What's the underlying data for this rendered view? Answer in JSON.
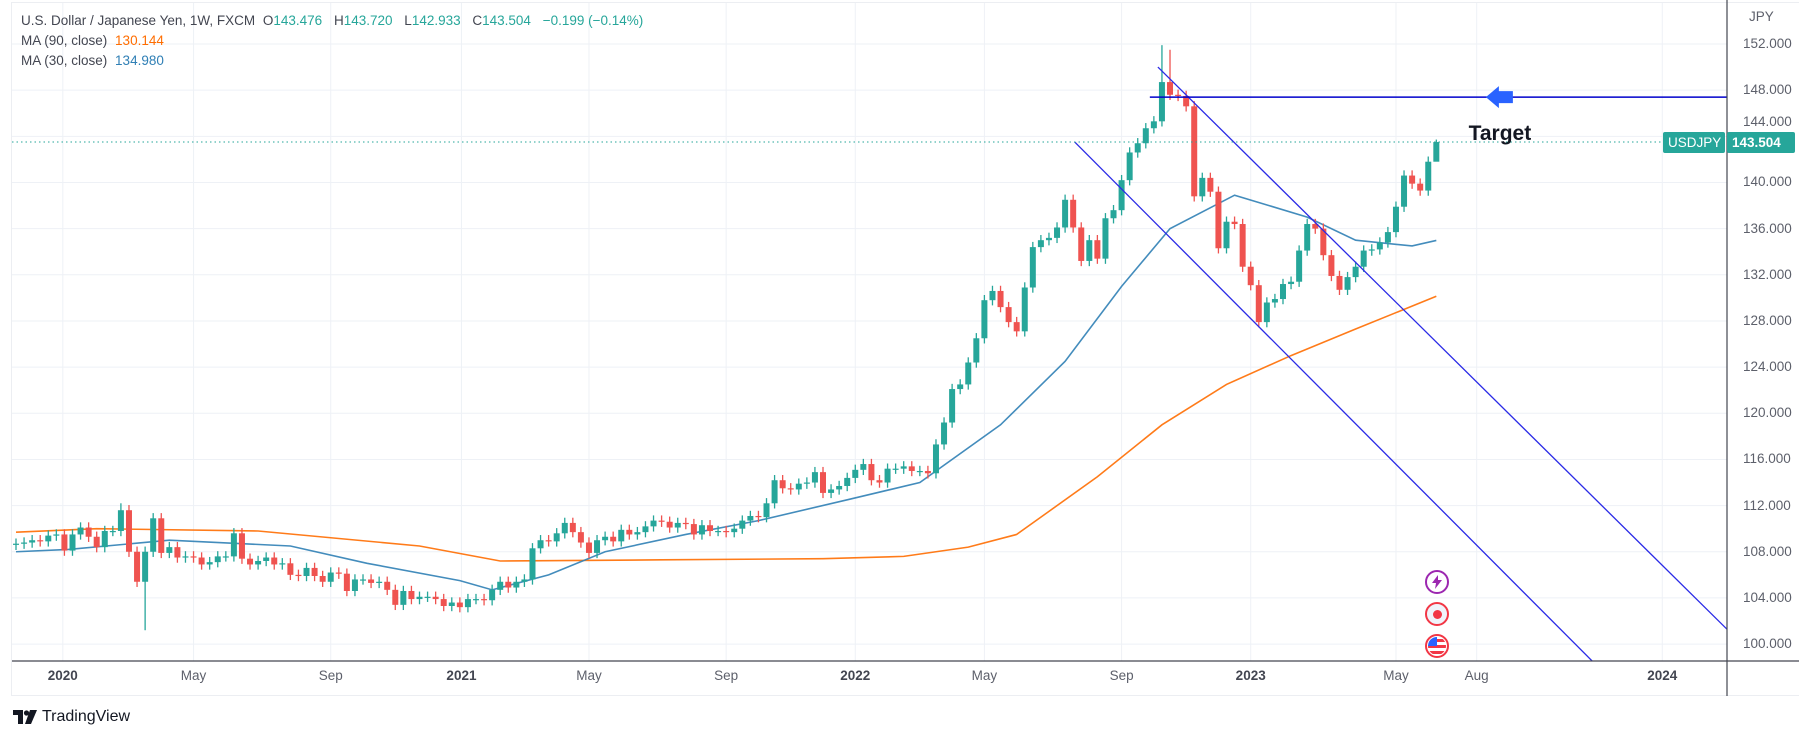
{
  "legend": {
    "title": "U.S. Dollar / Japanese Yen, 1W, FXCM",
    "o_label": "O",
    "o": "143.476",
    "h_label": "H",
    "h": "143.720",
    "l_label": "L",
    "l": "142.933",
    "c_label": "C",
    "c": "143.504",
    "change": "−0.199 (−0.14%)",
    "ma90_label": "MA (90, close)",
    "ma90_value": "130.144",
    "ma30_label": "MA (30, close)",
    "ma30_value": "134.980"
  },
  "price_tag": {
    "symbol": "USDJPY",
    "price": "143.504"
  },
  "annotation": {
    "text": "Target"
  },
  "branding": {
    "name": "TradingView"
  },
  "colors": {
    "up": "#26a69a",
    "down": "#ef5350",
    "ma90": "#ff6d00",
    "ma30": "#2f7fb5",
    "drawing": "#2a2ae6",
    "arrow": "#2962ff",
    "grid": "#eef1f6"
  },
  "events": [
    {
      "icon": "lightning-icon",
      "color": "#9c27b0"
    },
    {
      "icon": "japan-flag-icon",
      "color": "#f23645"
    },
    {
      "icon": "us-flag-icon",
      "color": "#f23645"
    }
  ],
  "chart_data": {
    "type": "candlestick",
    "title": "U.S. Dollar / Japanese Yen, 1W, FXCM",
    "ylabel": "JPY",
    "ylim": [
      98,
      152.7
    ],
    "price_ticks": [
      "152.000",
      "148.000",
      "144.000",
      "140.000",
      "136.000",
      "132.000",
      "128.000",
      "124.000",
      "120.000",
      "116.000",
      "112.000",
      "108.000",
      "104.000",
      "100.000"
    ],
    "price_tick_values": [
      152,
      148,
      144,
      140,
      136,
      132,
      128,
      124,
      120,
      116,
      112,
      108,
      104,
      100
    ],
    "time_labels": [
      {
        "label": "2020",
        "bar": 5.8,
        "year": true
      },
      {
        "label": "May",
        "bar": 22,
        "year": false
      },
      {
        "label": "Sep",
        "bar": 39,
        "year": false
      },
      {
        "label": "2021",
        "bar": 55.2,
        "year": true
      },
      {
        "label": "May",
        "bar": 71,
        "year": false
      },
      {
        "label": "Sep",
        "bar": 88,
        "year": false
      },
      {
        "label": "2022",
        "bar": 104,
        "year": true
      },
      {
        "label": "May",
        "bar": 120,
        "year": false
      },
      {
        "label": "Sep",
        "bar": 137,
        "year": false
      },
      {
        "label": "2023",
        "bar": 153,
        "year": true
      },
      {
        "label": "May",
        "bar": 171,
        "year": false
      },
      {
        "label": "Aug",
        "bar": 181,
        "year": false
      },
      {
        "label": "2024",
        "bar": 204,
        "year": true
      }
    ],
    "first_open": 108.6,
    "closes": [
      108.7,
      108.8,
      109.0,
      108.9,
      109.4,
      109.5,
      108.1,
      109.5,
      110.1,
      109.3,
      108.4,
      109.8,
      109.8,
      111.6,
      108.0,
      105.4,
      108.0,
      110.9,
      107.9,
      108.4,
      107.5,
      107.6,
      107.5,
      106.9,
      107.1,
      107.6,
      107.6,
      109.6,
      107.4,
      106.9,
      107.2,
      107.5,
      106.9,
      107.0,
      106.0,
      105.9,
      106.6,
      105.9,
      105.4,
      106.2,
      106.1,
      104.6,
      105.6,
      105.6,
      105.3,
      105.4,
      104.7,
      103.4,
      104.6,
      103.9,
      104.1,
      104.1,
      103.9,
      103.3,
      103.6,
      103.2,
      103.9,
      103.9,
      103.8,
      104.7,
      105.4,
      104.9,
      105.4,
      105.6,
      108.3,
      109.0,
      108.9,
      109.6,
      110.5,
      109.7,
      108.8,
      107.9,
      109.0,
      109.3,
      108.9,
      109.9,
      109.5,
      109.7,
      110.2,
      110.7,
      110.6,
      110.1,
      110.5,
      110.4,
      109.5,
      110.3,
      109.8,
      109.8,
      109.7,
      110.0,
      110.7,
      111.1,
      111.0,
      112.2,
      114.2,
      113.5,
      113.4,
      113.9,
      114.0,
      114.9,
      113.1,
      113.4,
      113.7,
      114.4,
      115.1,
      115.6,
      114.2,
      114.0,
      115.2,
      115.2,
      115.4,
      115.0,
      115.0,
      114.8,
      117.3,
      119.2,
      122.1,
      122.5,
      124.4,
      126.5,
      129.8,
      130.6,
      129.2,
      127.9,
      127.1,
      130.9,
      134.4,
      135.0,
      135.2,
      136.1,
      138.5,
      136.1,
      133.2,
      135.0,
      133.4,
      136.9,
      137.6,
      140.2,
      142.6,
      143.4,
      144.7,
      145.3,
      148.7,
      147.6,
      147.5,
      146.6,
      138.8,
      140.4,
      139.2,
      134.3,
      136.6,
      136.4,
      132.7,
      131.1,
      127.9,
      129.6,
      129.9,
      131.2,
      131.4,
      134.1,
      136.4,
      136.0,
      133.7,
      131.9,
      130.7,
      131.8,
      132.7,
      134.1,
      134.2,
      134.8,
      135.7,
      137.9,
      140.6,
      139.9,
      139.3,
      141.8,
      143.504
    ],
    "wick_overrides": [
      {
        "bar": 13,
        "high": 112.2
      },
      {
        "bar": 16,
        "low": 101.2
      },
      {
        "bar": 142,
        "high": 151.9
      },
      {
        "bar": 143,
        "high": 151.5
      },
      {
        "bar": 176,
        "high": 143.72,
        "low": 142.93
      }
    ],
    "series": [
      {
        "name": "MA (90, close)",
        "color": "#ff6d00",
        "points": [
          [
            0,
            109.7
          ],
          [
            10,
            110.0
          ],
          [
            30,
            109.8
          ],
          [
            50,
            108.5
          ],
          [
            60,
            107.2
          ],
          [
            80,
            107.3
          ],
          [
            100,
            107.4
          ],
          [
            110,
            107.6
          ],
          [
            118,
            108.4
          ],
          [
            124,
            109.5
          ],
          [
            128,
            111.5
          ],
          [
            134,
            114.5
          ],
          [
            142,
            119.0
          ],
          [
            150,
            122.5
          ],
          [
            158,
            125.0
          ],
          [
            166,
            127.3
          ],
          [
            176,
            130.144
          ]
        ]
      },
      {
        "name": "MA (30, close)",
        "color": "#2f7fb5",
        "points": [
          [
            0,
            108.0
          ],
          [
            6.5,
            108.2
          ],
          [
            19,
            109.0
          ],
          [
            34,
            108.5
          ],
          [
            43.5,
            107.0
          ],
          [
            55,
            105.5
          ],
          [
            59,
            104.7
          ],
          [
            66,
            106.0
          ],
          [
            73,
            108.0
          ],
          [
            83,
            109.5
          ],
          [
            92,
            110.7
          ],
          [
            103,
            112.5
          ],
          [
            112,
            114.0
          ],
          [
            122,
            119.0
          ],
          [
            130,
            124.5
          ],
          [
            137,
            131.0
          ],
          [
            143,
            136.0
          ],
          [
            151,
            138.9
          ],
          [
            160,
            137.0
          ],
          [
            166,
            135.0
          ],
          [
            173,
            134.5
          ],
          [
            176,
            134.98
          ]
        ]
      }
    ],
    "drawings": {
      "channel_upper": [
        [
          141.5,
          150.0
        ],
        [
          212,
          101.3
        ]
      ],
      "channel_lower": [
        [
          131.2,
          143.5
        ],
        [
          195.5,
          98.4
        ]
      ],
      "target_line": {
        "from_bar": 140.5,
        "price": 147.4
      },
      "target_arrow": {
        "bar": 184,
        "price": 147.4
      },
      "target_text": {
        "bar": 180,
        "price": 144.0
      },
      "last_price": 143.504
    }
  }
}
